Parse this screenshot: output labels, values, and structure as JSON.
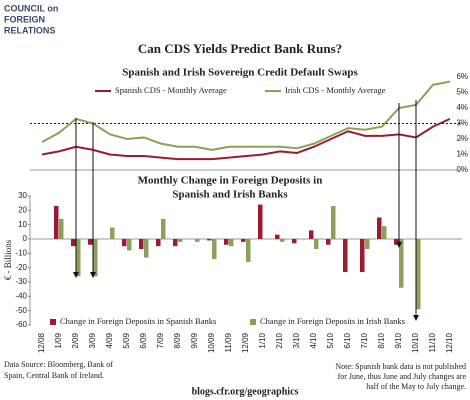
{
  "logo": [
    "COUNCIL on",
    "FOREIGN",
    "RELATIONS"
  ],
  "title": "Can CDS Yields Predict Bank Runs?",
  "chart_data": [
    {
      "type": "line",
      "title": "Spanish and Irish Sovereign Credit Default Swaps",
      "categories": [
        "12/08",
        "1/09",
        "2/09",
        "3/09",
        "4/09",
        "5/09",
        "6/09",
        "7/09",
        "8/09",
        "9/09",
        "10/09",
        "11/09",
        "12/09",
        "1/10",
        "2/10",
        "3/10",
        "4/10",
        "5/10",
        "6/10",
        "7/10",
        "8/10",
        "9/10",
        "10/10",
        "11/10",
        "12/10"
      ],
      "series": [
        {
          "name": "Spanish CDS - Monthly Average",
          "color": "#9b1b30",
          "values": [
            1.0,
            1.2,
            1.5,
            1.3,
            1.0,
            0.9,
            0.9,
            0.8,
            0.7,
            0.7,
            0.7,
            0.8,
            0.9,
            1.0,
            1.2,
            1.1,
            1.5,
            2.0,
            2.5,
            2.2,
            2.2,
            2.3,
            2.1,
            2.8,
            3.3
          ]
        },
        {
          "name": "Irish CDS - Monthly Average",
          "color": "#8da05a",
          "values": [
            1.8,
            2.4,
            3.3,
            3.0,
            2.3,
            2.0,
            2.1,
            1.7,
            1.5,
            1.5,
            1.3,
            1.5,
            1.5,
            1.5,
            1.5,
            1.4,
            1.7,
            2.2,
            2.7,
            2.6,
            2.8,
            4.0,
            4.2,
            5.5,
            5.7
          ]
        }
      ],
      "ylim": [
        0,
        6
      ],
      "yticks": [
        {
          "value": 0,
          "label": "0%"
        },
        {
          "value": 1,
          "label": "1%"
        },
        {
          "value": 2,
          "label": "2%"
        },
        {
          "value": 3,
          "label": "3%"
        },
        {
          "value": 4,
          "label": "4%"
        },
        {
          "value": 5,
          "label": "5%"
        },
        {
          "value": 6,
          "label": "6%"
        }
      ],
      "hline": 3
    },
    {
      "type": "bar",
      "title": [
        "Monthly Change in Foreign Deposits in",
        "Spanish and Irish Banks"
      ],
      "ylabel": "€ - Billions",
      "categories": [
        "12/08",
        "1/09",
        "2/09",
        "3/09",
        "4/09",
        "5/09",
        "6/09",
        "7/09",
        "8/09",
        "9/09",
        "10/09",
        "11/09",
        "12/09",
        "1/10",
        "2/10",
        "3/10",
        "4/10",
        "5/10",
        "6/10",
        "7/10",
        "8/10",
        "9/10",
        "10/10",
        "11/10",
        "12/10"
      ],
      "series": [
        {
          "name": "Change in  Foreign Deposits  in Spanish Banks",
          "color": "#9b1b30",
          "values": [
            null,
            23,
            -5,
            -4,
            0,
            -5,
            -7,
            -5,
            -5,
            0,
            -1,
            -4,
            -2,
            24,
            3,
            -3,
            6,
            -4,
            -23,
            -23,
            15,
            -4,
            0,
            null,
            null
          ]
        },
        {
          "name": "Change in  Foreign Deposits  in Irish Banks",
          "color": "#8da05a",
          "values": [
            null,
            14,
            -26,
            -26,
            8,
            -8,
            -13,
            14,
            -2,
            -2,
            -14,
            -5,
            -16,
            0,
            -2,
            0,
            -7,
            23,
            0,
            -7,
            9,
            -34,
            -49,
            null,
            null
          ]
        }
      ],
      "ylim": [
        -60,
        30
      ],
      "yticks": [
        30,
        20,
        10,
        0,
        -10,
        -20,
        -30,
        -40,
        -50,
        -60
      ]
    }
  ],
  "source": [
    "Data Source: Bloomberg, Bank of",
    "Spain, Central Bank of Ireland."
  ],
  "note": [
    "Note: Spanish bank data is not published",
    "for June, thus June and July changes are",
    "half of the May to July change."
  ],
  "url": "blogs.cfr.org/geographics"
}
